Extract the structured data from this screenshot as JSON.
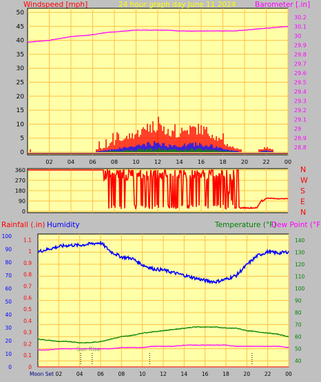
{
  "header": {
    "left_title": "Windspeed [mph]",
    "center_title": "24 hour graph day   June 11 2024",
    "right_title": "Barometer [.in]"
  },
  "colors": {
    "frame": "#c0c0c0",
    "plot_bg": "#ffffa8",
    "grid": "#ffc040",
    "red": "#ff0000",
    "blue": "#0000ff",
    "green": "#008000",
    "magenta": "#ff00ff",
    "yellow_title": "#ffff00",
    "moon_text": "#000080",
    "sun_text": "#808080"
  },
  "panel1": {
    "x_ticks": [
      "02",
      "04",
      "06",
      "08",
      "10",
      "12",
      "14",
      "16",
      "18",
      "20",
      "22",
      "00"
    ],
    "y_left_ticks": [
      "0",
      "5",
      "10",
      "15",
      "20",
      "25",
      "30",
      "35",
      "40",
      "45",
      "50"
    ],
    "y_right_ticks": [
      "28.8",
      "28.9",
      "29",
      "29.1",
      "29.2",
      "29.3",
      "29.4",
      "29.5",
      "29.6",
      "29.7",
      "29.8",
      "29.9",
      "30",
      "30.1",
      "30.2"
    ]
  },
  "panel2": {
    "y_ticks": [
      "0",
      "90",
      "180",
      "270",
      "360"
    ],
    "compass": [
      "N",
      "W",
      "S",
      "E",
      "N"
    ]
  },
  "panel3": {
    "label_rainfall": "Rainfall (.in)",
    "label_humidity": "Humidity",
    "label_temperature": "Temperature (°F)",
    "label_dewpoint": "Dew Point (°F)",
    "y_humidity_ticks": [
      "0",
      "10",
      "20",
      "30",
      "40",
      "50",
      "60",
      "70",
      "80",
      "90",
      "100"
    ],
    "y_rain_ticks": [
      "0",
      "0.1",
      "0.2",
      "0.3",
      "0.4",
      "0.5",
      "0.6",
      "0.7",
      "0.8",
      "0.9",
      "1",
      "1.1"
    ],
    "y_temp_ticks": [
      "40",
      "50",
      "60",
      "70",
      "80",
      "90",
      "100",
      "110",
      "120",
      "130",
      "140"
    ],
    "x_ticks": [
      "02",
      "04",
      "06",
      "08",
      "10",
      "12",
      "14",
      "16",
      "18",
      "20",
      "22",
      "00"
    ],
    "moon_label": "Moon Set",
    "sun_label": "Sun Rise"
  },
  "chart_data": [
    {
      "type": "line",
      "title": "24 hour graph day   June 11 2024",
      "xlabel": "",
      "x": [
        0,
        1,
        2,
        3,
        4,
        5,
        6,
        7,
        8,
        9,
        10,
        11,
        12,
        13,
        14,
        15,
        16,
        17,
        18,
        19,
        20,
        21,
        22,
        23,
        24
      ],
      "series": [
        {
          "name": "Barometer [.in]",
          "axis": "right",
          "color": "#ff00ff",
          "values": [
            29.93,
            29.94,
            29.95,
            29.97,
            29.99,
            30.0,
            30.01,
            30.03,
            30.04,
            30.05,
            30.06,
            30.06,
            30.06,
            30.06,
            30.05,
            30.05,
            30.05,
            30.05,
            30.05,
            30.05,
            30.06,
            30.07,
            30.08,
            30.09,
            30.1
          ]
        },
        {
          "name": "Windspeed [mph]",
          "axis": "left",
          "color": "#ff0000",
          "values": [
            0,
            0,
            0,
            0,
            0,
            0,
            0,
            1,
            2,
            3,
            4,
            5,
            6,
            4,
            4,
            5,
            5,
            4,
            2,
            1,
            0,
            0,
            1,
            0,
            0
          ]
        }
      ],
      "ylabel": "Windspeed [mph]",
      "ylim": [
        0,
        50
      ],
      "y2label": "Barometer [.in]",
      "y2lim": [
        28.75,
        30.25
      ],
      "grid": true
    },
    {
      "type": "line",
      "ylabel": "",
      "ylim": [
        0,
        360
      ],
      "x": [
        0,
        1,
        2,
        3,
        4,
        5,
        6,
        7,
        8,
        9,
        10,
        11,
        12,
        13,
        14,
        15,
        16,
        17,
        18,
        19,
        20,
        21,
        22,
        23,
        24
      ],
      "series": [
        {
          "name": "Wind direction",
          "color": "#ff0000",
          "values": [
            360,
            360,
            360,
            360,
            360,
            360,
            360,
            360,
            330,
            320,
            300,
            310,
            280,
            320,
            300,
            310,
            330,
            300,
            340,
            30,
            30,
            30,
            115,
            110,
            110
          ]
        }
      ],
      "grid": true
    },
    {
      "type": "line",
      "x": [
        0,
        1,
        2,
        3,
        4,
        5,
        6,
        7,
        8,
        9,
        10,
        11,
        12,
        13,
        14,
        15,
        16,
        17,
        18,
        19,
        20,
        21,
        22,
        23,
        24
      ],
      "series": [
        {
          "name": "Humidity",
          "axis": "humidity",
          "color": "#0000ff",
          "values": [
            88,
            90,
            92,
            93,
            93,
            94,
            95,
            88,
            84,
            83,
            78,
            75,
            74,
            72,
            70,
            68,
            66,
            65,
            67,
            70,
            78,
            85,
            88,
            87,
            88
          ]
        },
        {
          "name": "Temperature (°F)",
          "axis": "temperature",
          "color": "#008000",
          "values": [
            58,
            57,
            56,
            56,
            55,
            55,
            56,
            58,
            60,
            61,
            63,
            64,
            65,
            66,
            67,
            68,
            68,
            68,
            67,
            67,
            65,
            64,
            63,
            62,
            60
          ]
        },
        {
          "name": "Dew Point (°F)",
          "axis": "temperature",
          "color": "#ff00ff",
          "values": [
            49,
            49,
            50,
            50,
            50,
            50,
            50,
            50,
            51,
            51,
            51,
            52,
            52,
            52,
            53,
            53,
            53,
            53,
            53,
            52,
            52,
            52,
            52,
            52,
            51
          ]
        },
        {
          "name": "Rainfall (.in)",
          "axis": "rain",
          "color": "#ff0000",
          "values": [
            0,
            0,
            0,
            0,
            0,
            0,
            0,
            0,
            0,
            0,
            0,
            0,
            0,
            0,
            0,
            0,
            0,
            0,
            0,
            0,
            0,
            0,
            0,
            0,
            0
          ]
        }
      ],
      "ylabel": "Humidity",
      "ylim": [
        0,
        100
      ],
      "y2label": "Temperature (°F)",
      "y2lim": [
        35,
        145
      ],
      "y3label": "Rainfall (.in)",
      "y3lim": [
        0,
        1.15
      ],
      "grid": true
    }
  ]
}
